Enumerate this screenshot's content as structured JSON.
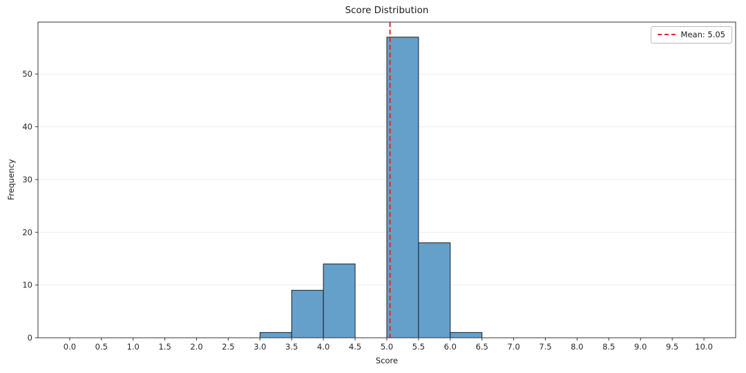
{
  "chart_data": {
    "type": "bar",
    "subtype": "histogram",
    "title": "Score Distribution",
    "xlabel": "Score",
    "ylabel": "Frequency",
    "bin_width": 0.5,
    "bin_edges": [
      3.0,
      3.5,
      4.0,
      4.5,
      5.0,
      5.5,
      6.0,
      6.5
    ],
    "counts": [
      1,
      9,
      14,
      0,
      57,
      18,
      1
    ],
    "mean": 5.05,
    "legend": {
      "mean_label": "Mean: 5.05",
      "position": "upper right"
    },
    "xlim": [
      -0.5,
      10.5
    ],
    "ylim": [
      0,
      59.85
    ],
    "x_ticks": [
      0.0,
      0.5,
      1.0,
      1.5,
      2.0,
      2.5,
      3.0,
      3.5,
      4.0,
      4.5,
      5.0,
      5.5,
      6.0,
      6.5,
      7.0,
      7.5,
      8.0,
      8.5,
      9.0,
      9.5,
      10.0
    ],
    "y_ticks": [
      0,
      10,
      20,
      30,
      40,
      50
    ],
    "grid": "horizontal",
    "colors": {
      "bar_fill": "#65a0cb",
      "bar_edge": "#1c1c1c",
      "mean_line": "#d42a2a",
      "grid": "#ededed",
      "spine": "#333333",
      "text": "#262626",
      "background": "#ffffff"
    }
  }
}
